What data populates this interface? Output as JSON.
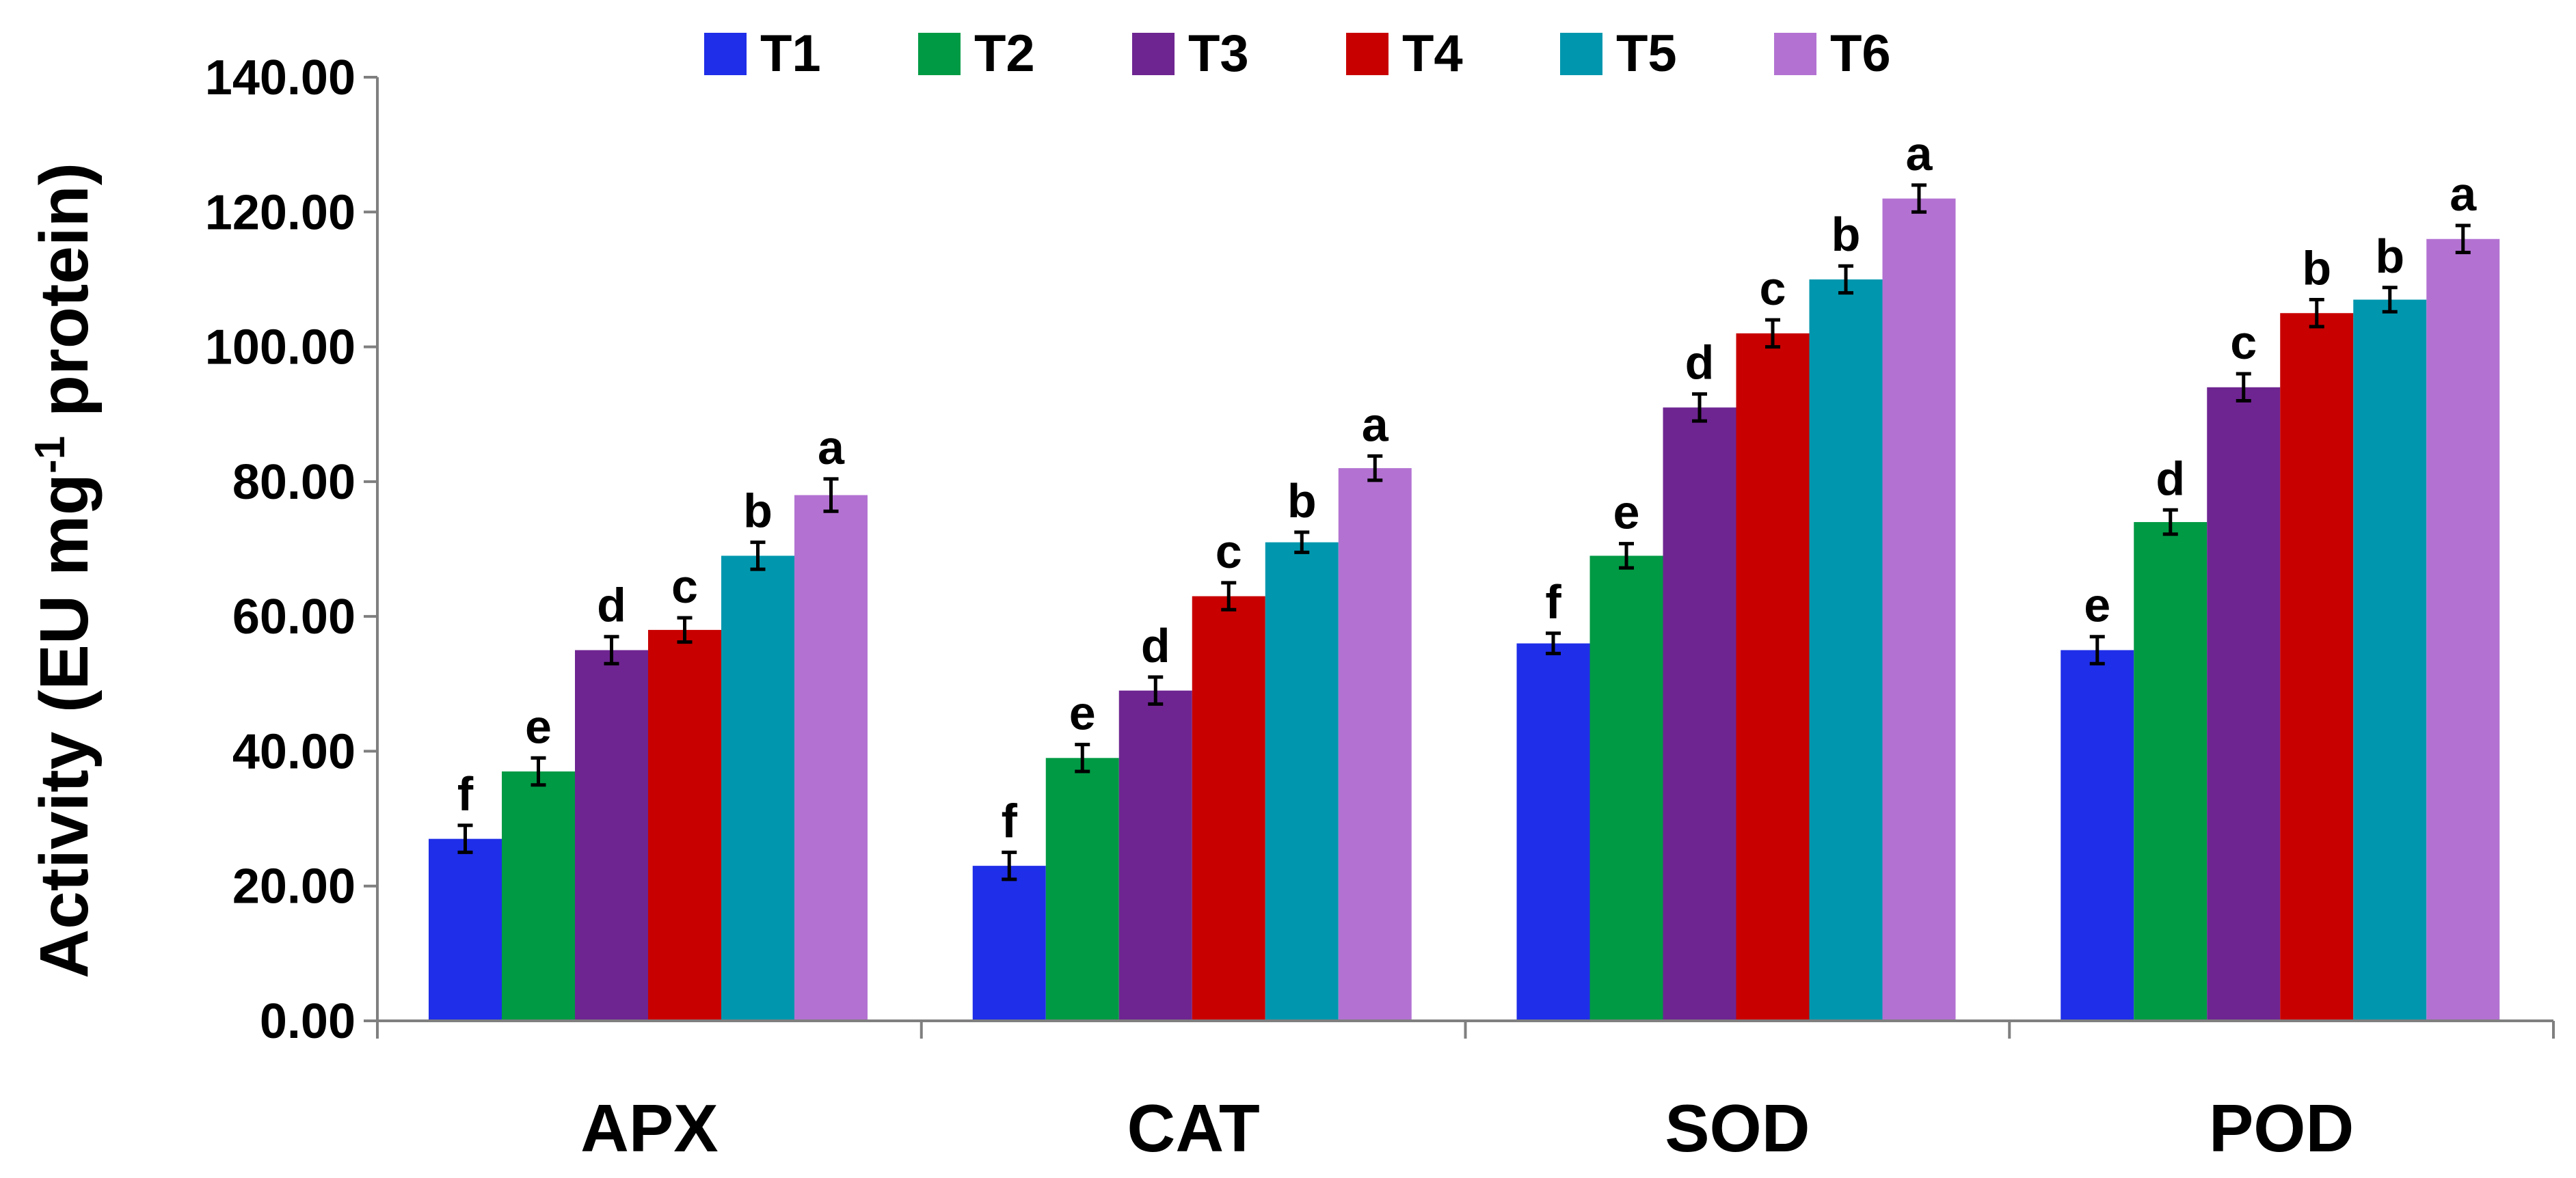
{
  "chart_data": {
    "type": "bar",
    "title": "",
    "xlabel": "",
    "ylabel": "Activity (EU mg",
    "ylabel_superscript": "-1",
    "ylabel_suffix": " protein)",
    "ylim": [
      0,
      140
    ],
    "yticks": [
      "0.00",
      "20.00",
      "40.00",
      "60.00",
      "80.00",
      "100.00",
      "120.00",
      "140.00"
    ],
    "categories": [
      "APX",
      "CAT",
      "SOD",
      "POD"
    ],
    "legend_position": "top",
    "series": [
      {
        "name": "T1",
        "color": "#1f2ee8",
        "values": [
          27,
          23,
          56,
          55
        ],
        "errors": [
          2,
          2,
          1.5,
          2
        ],
        "letters": [
          "f",
          "f",
          "f",
          "e"
        ]
      },
      {
        "name": "T2",
        "color": "#009a44",
        "values": [
          37,
          39,
          69,
          74
        ],
        "errors": [
          2,
          2,
          1.8,
          1.8
        ],
        "letters": [
          "e",
          "e",
          "e",
          "d"
        ]
      },
      {
        "name": "T3",
        "color": "#6e2591",
        "values": [
          55,
          49,
          91,
          94
        ],
        "errors": [
          2,
          2,
          2,
          2
        ],
        "letters": [
          "d",
          "d",
          "d",
          "c"
        ]
      },
      {
        "name": "T4",
        "color": "#c80000",
        "values": [
          58,
          63,
          102,
          105
        ],
        "errors": [
          1.8,
          2,
          2,
          2
        ],
        "letters": [
          "c",
          "c",
          "c",
          "b"
        ]
      },
      {
        "name": "T5",
        "color": "#0097ae",
        "values": [
          69,
          71,
          110,
          107
        ],
        "errors": [
          2,
          1.5,
          2,
          1.8
        ],
        "letters": [
          "b",
          "b",
          "b",
          "b"
        ]
      },
      {
        "name": "T6",
        "color": "#b372d2",
        "values": [
          78,
          82,
          122,
          116
        ],
        "errors": [
          2.4,
          1.8,
          2,
          2
        ],
        "letters": [
          "a",
          "a",
          "a",
          "a"
        ]
      }
    ]
  }
}
